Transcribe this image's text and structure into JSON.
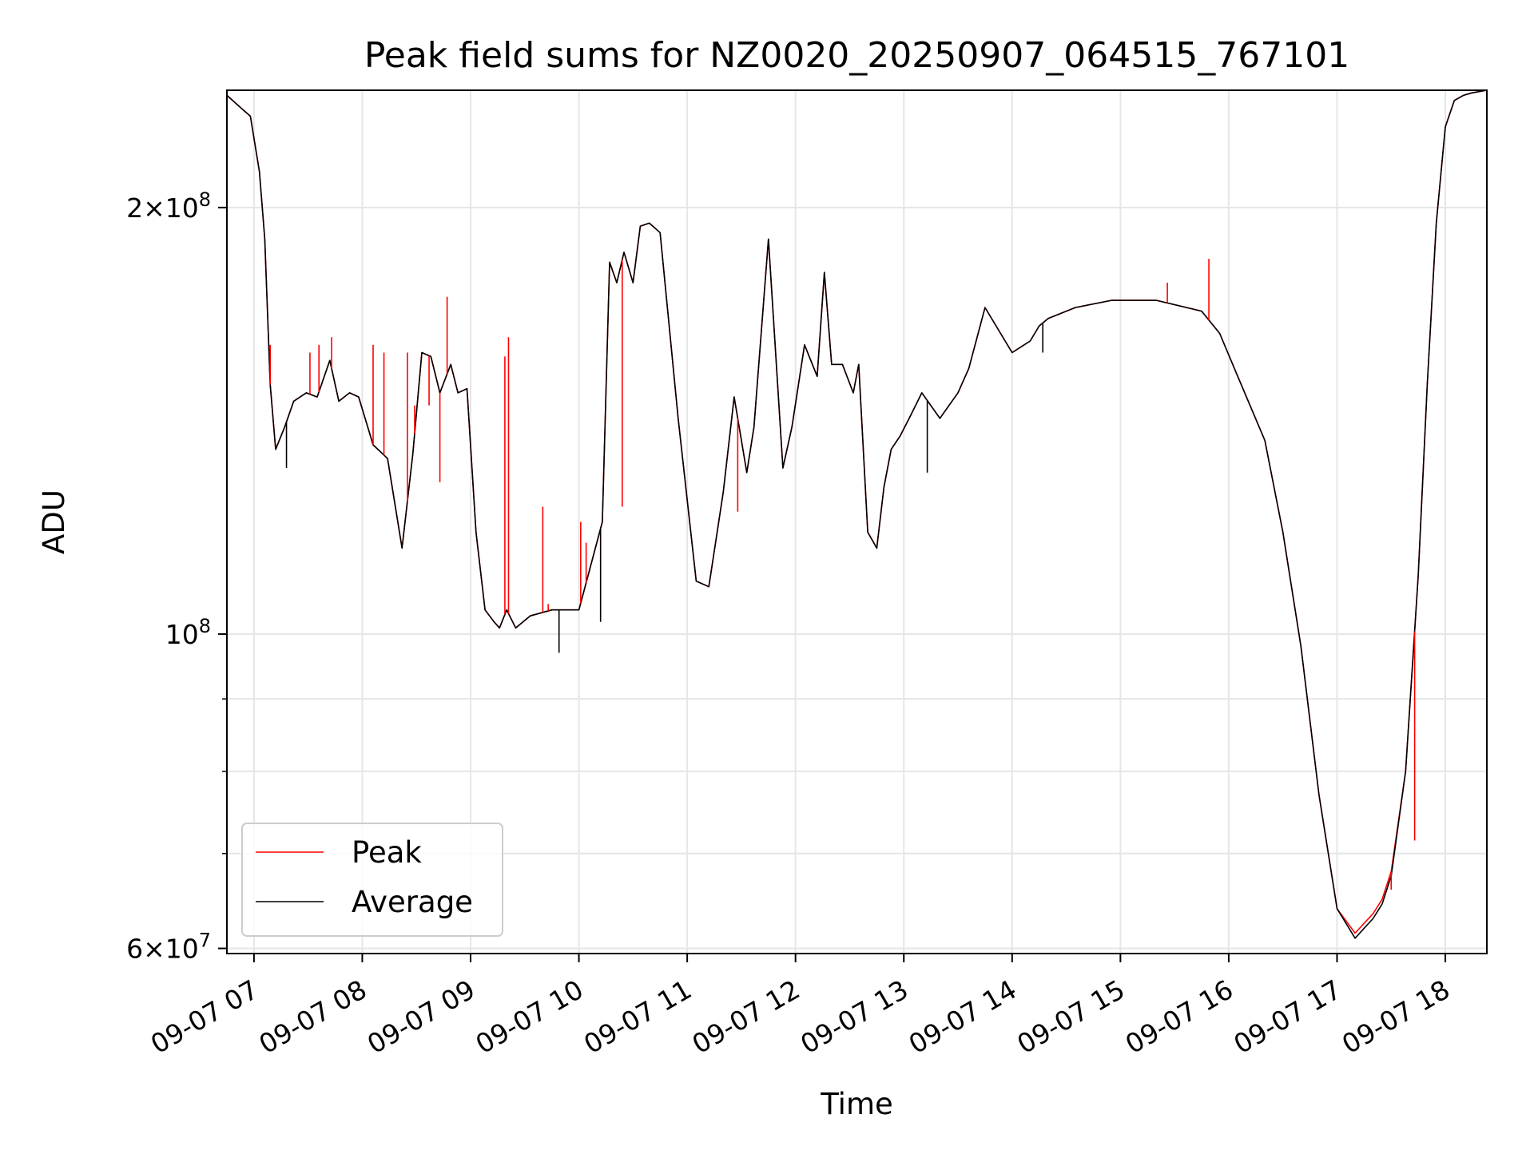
{
  "chart_data": {
    "type": "line",
    "title": "Peak field sums for NZ0020_20250907_064515_767101",
    "xlabel": "Time",
    "ylabel": "ADU",
    "yscale": "log",
    "ylim": [
      59500000,
      242000000
    ],
    "xlim": [
      "2025-09-07 06:45",
      "2025-09-07 18:23"
    ],
    "grid": true,
    "legend_position": "lower-left",
    "x_ticks": [
      "09-07 07",
      "09-07 08",
      "09-07 09",
      "09-07 10",
      "09-07 11",
      "09-07 12",
      "09-07 13",
      "09-07 14",
      "09-07 15",
      "09-07 16",
      "09-07 17",
      "09-07 18"
    ],
    "y_ticks": [
      {
        "value": 60000000,
        "mantissa": "6",
        "exponent": "7"
      },
      {
        "value": 100000000,
        "mantissa": "",
        "exponent": "8"
      },
      {
        "value": 200000000,
        "mantissa": "2",
        "exponent": "8"
      }
    ],
    "y_minor_ticks": [
      70000000,
      80000000,
      90000000
    ],
    "x": [
      "2025-09-07 06:45",
      "2025-09-07 06:53",
      "2025-09-07 06:58",
      "2025-09-07 07:03",
      "2025-09-07 07:06",
      "2025-09-07 07:09",
      "2025-09-07 07:12",
      "2025-09-07 07:17",
      "2025-09-07 07:22",
      "2025-09-07 07:29",
      "2025-09-07 07:35",
      "2025-09-07 07:42",
      "2025-09-07 07:47",
      "2025-09-07 07:53",
      "2025-09-07 07:58",
      "2025-09-07 08:06",
      "2025-09-07 08:14",
      "2025-09-07 08:22",
      "2025-09-07 08:28",
      "2025-09-07 08:33",
      "2025-09-07 08:38",
      "2025-09-07 08:43",
      "2025-09-07 08:49",
      "2025-09-07 08:53",
      "2025-09-07 08:58",
      "2025-09-07 09:03",
      "2025-09-07 09:08",
      "2025-09-07 09:13",
      "2025-09-07 09:16",
      "2025-09-07 09:20",
      "2025-09-07 09:25",
      "2025-09-07 09:33",
      "2025-09-07 09:45",
      "2025-09-07 10:00",
      "2025-09-07 10:13",
      "2025-09-07 10:17",
      "2025-09-07 10:21",
      "2025-09-07 10:25",
      "2025-09-07 10:30",
      "2025-09-07 10:34",
      "2025-09-07 10:39",
      "2025-09-07 10:45",
      "2025-09-07 10:55",
      "2025-09-07 11:05",
      "2025-09-07 11:12",
      "2025-09-07 11:20",
      "2025-09-07 11:26",
      "2025-09-07 11:33",
      "2025-09-07 11:37",
      "2025-09-07 11:45",
      "2025-09-07 11:53",
      "2025-09-07 11:58",
      "2025-09-07 12:05",
      "2025-09-07 12:12",
      "2025-09-07 12:16",
      "2025-09-07 12:20",
      "2025-09-07 12:26",
      "2025-09-07 12:32",
      "2025-09-07 12:35",
      "2025-09-07 12:40",
      "2025-09-07 12:45",
      "2025-09-07 12:49",
      "2025-09-07 12:53",
      "2025-09-07 12:58",
      "2025-09-07 13:03",
      "2025-09-07 13:10",
      "2025-09-07 13:20",
      "2025-09-07 13:30",
      "2025-09-07 13:36",
      "2025-09-07 13:45",
      "2025-09-07 14:00",
      "2025-09-07 14:10",
      "2025-09-07 14:15",
      "2025-09-07 14:20",
      "2025-09-07 14:35",
      "2025-09-07 14:55",
      "2025-09-07 15:20",
      "2025-09-07 15:45",
      "2025-09-07 15:55",
      "2025-09-07 16:05",
      "2025-09-07 16:20",
      "2025-09-07 16:30",
      "2025-09-07 16:40",
      "2025-09-07 16:50",
      "2025-09-07 17:00",
      "2025-09-07 17:10",
      "2025-09-07 17:15",
      "2025-09-07 17:20",
      "2025-09-07 17:25",
      "2025-09-07 17:30",
      "2025-09-07 17:38",
      "2025-09-07 17:45",
      "2025-09-07 17:50",
      "2025-09-07 17:55",
      "2025-09-07 18:00",
      "2025-09-07 18:05",
      "2025-09-07 18:10",
      "2025-09-07 18:15",
      "2025-09-07 18:23"
    ],
    "series": [
      {
        "name": "Peak",
        "color": "#ff0000",
        "values": [
          240000000,
          235000000,
          232000000,
          212000000,
          190000000,
          150000000,
          135000000,
          140000000,
          146000000,
          148000000,
          147000000,
          156000000,
          146000000,
          148000000,
          147000000,
          136000000,
          133000000,
          115000000,
          134000000,
          158000000,
          157000000,
          148000000,
          155000000,
          148000000,
          149000000,
          118000000,
          104000000,
          102000000,
          101000000,
          104000000,
          101000000,
          103000000,
          104000000,
          104000000,
          120000000,
          183000000,
          177000000,
          186000000,
          177000000,
          194000000,
          195000000,
          192000000,
          142000000,
          109000000,
          108000000,
          126000000,
          147000000,
          130000000,
          140000000,
          190000000,
          131000000,
          140000000,
          160000000,
          152000000,
          180000000,
          155000000,
          155000000,
          148000000,
          155000000,
          118000000,
          115000000,
          127000000,
          135000000,
          138000000,
          142000000,
          148000000,
          142000000,
          148000000,
          154000000,
          170000000,
          158000000,
          161000000,
          165000000,
          167000000,
          170000000,
          172000000,
          172000000,
          169000000,
          163000000,
          152000000,
          137000000,
          118000000,
          98000000,
          77000000,
          64000000,
          61500000,
          62500000,
          63500000,
          65000000,
          68000000,
          80000000,
          110000000,
          150000000,
          195000000,
          228000000,
          238000000,
          240000000,
          241000000,
          242000000
        ]
      },
      {
        "name": "Average",
        "color": "#000000",
        "values": [
          240000000,
          235000000,
          232000000,
          212000000,
          190000000,
          150000000,
          135000000,
          140000000,
          146000000,
          148000000,
          147000000,
          156000000,
          146000000,
          148000000,
          147000000,
          136000000,
          133000000,
          115000000,
          134000000,
          158000000,
          157000000,
          148000000,
          155000000,
          148000000,
          149000000,
          118000000,
          104000000,
          102000000,
          101000000,
          104000000,
          101000000,
          103000000,
          104000000,
          104000000,
          120000000,
          183000000,
          177000000,
          186000000,
          177000000,
          194000000,
          195000000,
          192000000,
          142000000,
          109000000,
          108000000,
          126000000,
          147000000,
          130000000,
          140000000,
          190000000,
          131000000,
          140000000,
          160000000,
          152000000,
          180000000,
          155000000,
          155000000,
          148000000,
          155000000,
          118000000,
          115000000,
          127000000,
          135000000,
          138000000,
          142000000,
          148000000,
          142000000,
          148000000,
          154000000,
          170000000,
          158000000,
          161000000,
          165000000,
          167000000,
          170000000,
          172000000,
          172000000,
          169000000,
          163000000,
          152000000,
          137000000,
          118000000,
          98000000,
          77000000,
          64000000,
          61000000,
          62000000,
          63000000,
          64500000,
          67500000,
          80000000,
          110000000,
          150000000,
          195000000,
          228000000,
          238000000,
          240000000,
          241000000,
          242000000
        ]
      }
    ],
    "peak_spikes": [
      {
        "x": "2025-09-07 07:09",
        "y": 160000000
      },
      {
        "x": "2025-09-07 07:31",
        "y": 158000000
      },
      {
        "x": "2025-09-07 07:36",
        "y": 160000000
      },
      {
        "x": "2025-09-07 07:43",
        "y": 162000000
      },
      {
        "x": "2025-09-07 08:06",
        "y": 160000000
      },
      {
        "x": "2025-09-07 08:12",
        "y": 158000000
      },
      {
        "x": "2025-09-07 08:25",
        "y": 158000000
      },
      {
        "x": "2025-09-07 08:29",
        "y": 145000000
      },
      {
        "x": "2025-09-07 08:37",
        "y": 145000000
      },
      {
        "x": "2025-09-07 08:43",
        "y": 128000000
      },
      {
        "x": "2025-09-07 08:47",
        "y": 173000000
      },
      {
        "x": "2025-09-07 09:19",
        "y": 157000000
      },
      {
        "x": "2025-09-07 09:21",
        "y": 162000000
      },
      {
        "x": "2025-09-07 09:40",
        "y": 123000000
      },
      {
        "x": "2025-09-07 09:43",
        "y": 105000000
      },
      {
        "x": "2025-09-07 10:01",
        "y": 120000000
      },
      {
        "x": "2025-09-07 10:04",
        "y": 116000000
      },
      {
        "x": "2025-09-07 10:12",
        "y": 118000000
      },
      {
        "x": "2025-09-07 10:24",
        "y": 123000000
      },
      {
        "x": "2025-09-07 11:28",
        "y": 122000000
      },
      {
        "x": "2025-09-07 15:26",
        "y": 177000000
      },
      {
        "x": "2025-09-07 15:49",
        "y": 184000000
      },
      {
        "x": "2025-09-07 17:26",
        "y": 65500000
      },
      {
        "x": "2025-09-07 17:30",
        "y": 66000000
      },
      {
        "x": "2025-09-07 17:43",
        "y": 71500000
      }
    ],
    "average_dips": [
      {
        "x": "2025-09-07 07:18",
        "y": 131000000
      },
      {
        "x": "2025-09-07 09:49",
        "y": 97000000
      },
      {
        "x": "2025-09-07 10:12",
        "y": 102000000
      },
      {
        "x": "2025-09-07 13:13",
        "y": 130000000
      },
      {
        "x": "2025-09-07 14:17",
        "y": 158000000
      }
    ],
    "legend": [
      {
        "label": "Peak",
        "color": "#ff0000"
      },
      {
        "label": "Average",
        "color": "#000000"
      }
    ]
  }
}
